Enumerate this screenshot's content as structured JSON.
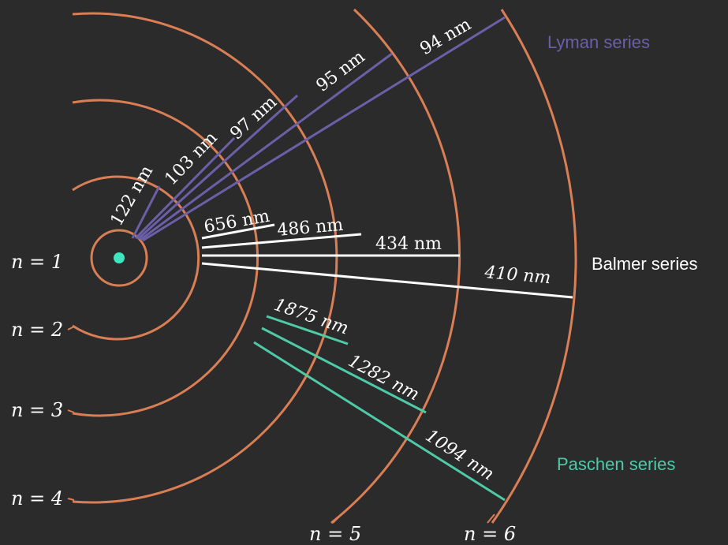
{
  "colors": {
    "background": "#2b2b2b",
    "orbit": "#d97e55",
    "nucleus": "#3ee6c0",
    "lyman": "#6b5fa8",
    "balmer": "#ffffff",
    "paschen": "#4ecba6",
    "text": "#ffffff"
  },
  "levels": {
    "n1": "n = 1",
    "n2": "n = 2",
    "n3": "n = 3",
    "n4": "n = 4",
    "n5": "n = 5",
    "n6": "n = 6"
  },
  "series": {
    "lyman": "Lyman series",
    "balmer": "Balmer series",
    "paschen": "Paschen series"
  },
  "wavelengths": {
    "lyman": [
      "122 nm",
      "103 nm",
      "97 nm",
      "95 nm",
      "94 nm"
    ],
    "balmer": [
      "656 nm",
      "486 nm",
      "434 nm",
      "410 nm"
    ],
    "paschen": [
      "1875 nm",
      "1282 nm",
      "1094 nm"
    ]
  }
}
